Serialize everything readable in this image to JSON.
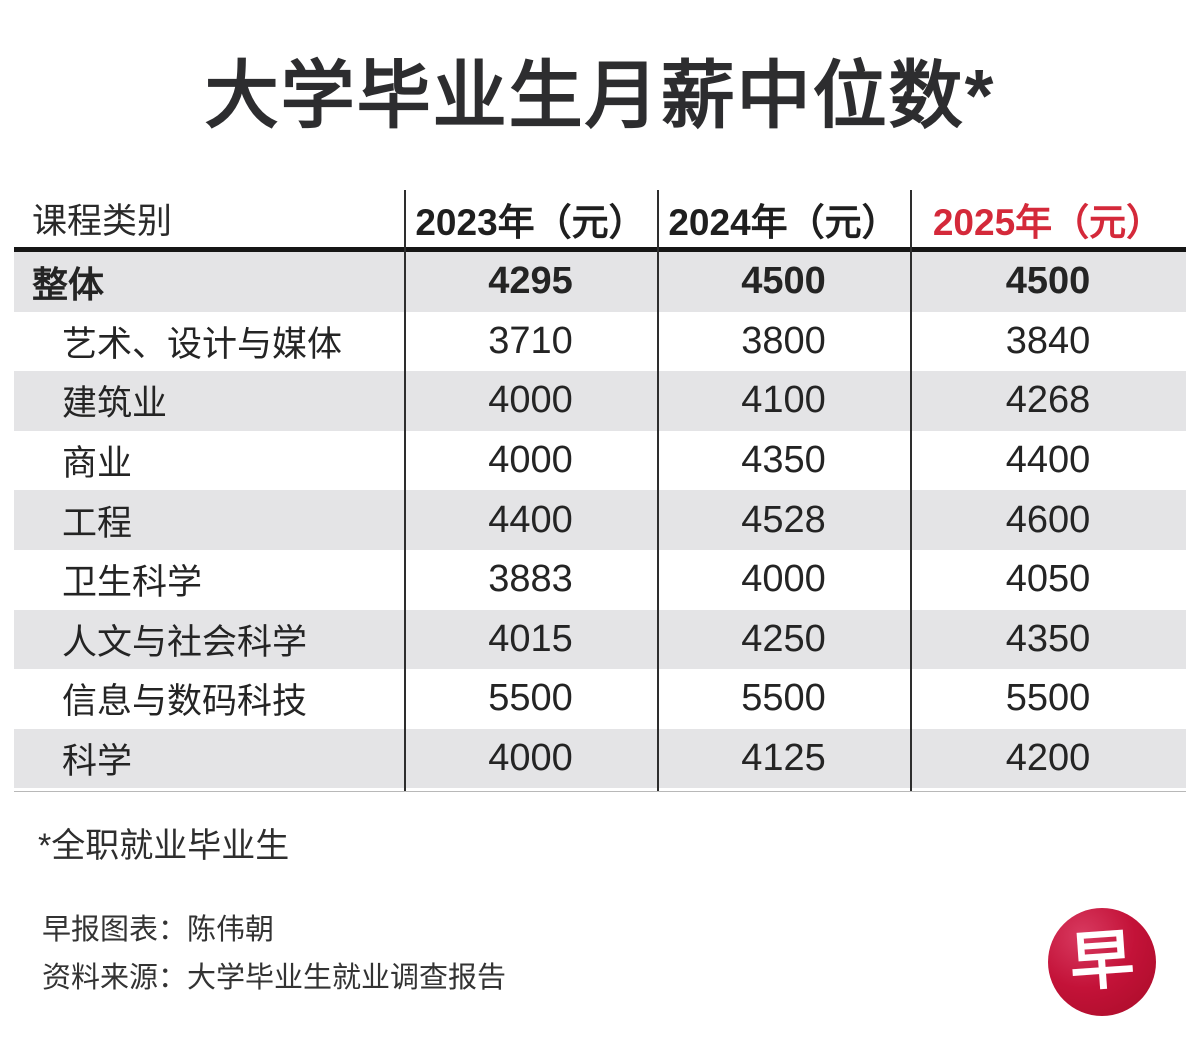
{
  "title": "大学毕业生月薪中位数*",
  "colors": {
    "accent_red": "#d4293a",
    "logo_red_dark": "#a80c28",
    "logo_red_light": "#d83a60",
    "row_shade_gray": "#e4e4e6",
    "text_dark": "#242424"
  },
  "table": {
    "header": [
      "课程类别",
      "2023年（元）",
      "2024年（元）",
      "2025年（元）"
    ],
    "rows": [
      {
        "label": "整体",
        "values": [
          "4295",
          "4500",
          "4500"
        ]
      },
      {
        "label": "艺术、设计与媒体",
        "values": [
          "3710",
          "3800",
          "3840"
        ]
      },
      {
        "label": "建筑业",
        "values": [
          "4000",
          "4100",
          "4268"
        ]
      },
      {
        "label": "商业",
        "values": [
          "4000",
          "4350",
          "4400"
        ]
      },
      {
        "label": "工程",
        "values": [
          "4400",
          "4528",
          "4600"
        ]
      },
      {
        "label": "卫生科学",
        "values": [
          "3883",
          "4000",
          "4050"
        ]
      },
      {
        "label": "人文与社会科学",
        "values": [
          "4015",
          "4250",
          "4350"
        ]
      },
      {
        "label": "信息与数码科技",
        "values": [
          "5500",
          "5500",
          "5500"
        ]
      },
      {
        "label": "科学",
        "values": [
          "4000",
          "4125",
          "4200"
        ]
      }
    ]
  },
  "footnote": "*全职就业毕业生",
  "credits": {
    "chart_credit": "早报图表：陈伟朝",
    "source": "资料来源：大学毕业生就业调查报告"
  },
  "logo": {
    "glyph": "早"
  },
  "chart_data": {
    "type": "table",
    "title": "大学毕业生月薪中位数*",
    "categories": [
      "整体",
      "艺术、设计与媒体",
      "建筑业",
      "商业",
      "工程",
      "卫生科学",
      "人文与社会科学",
      "信息与数码科技",
      "科学"
    ],
    "series": [
      {
        "name": "2023年（元）",
        "values": [
          4295,
          3710,
          4000,
          4000,
          4400,
          3883,
          4015,
          5500,
          4000
        ]
      },
      {
        "name": "2024年（元）",
        "values": [
          4500,
          3800,
          4100,
          4350,
          4528,
          4000,
          4250,
          5500,
          4125
        ]
      },
      {
        "name": "2025年（元）",
        "values": [
          4500,
          3840,
          4268,
          4400,
          4600,
          4050,
          4350,
          5500,
          4200
        ]
      }
    ],
    "footnote": "*全职就业毕业生",
    "legend_position": "none",
    "grid": "zebra-rows"
  }
}
